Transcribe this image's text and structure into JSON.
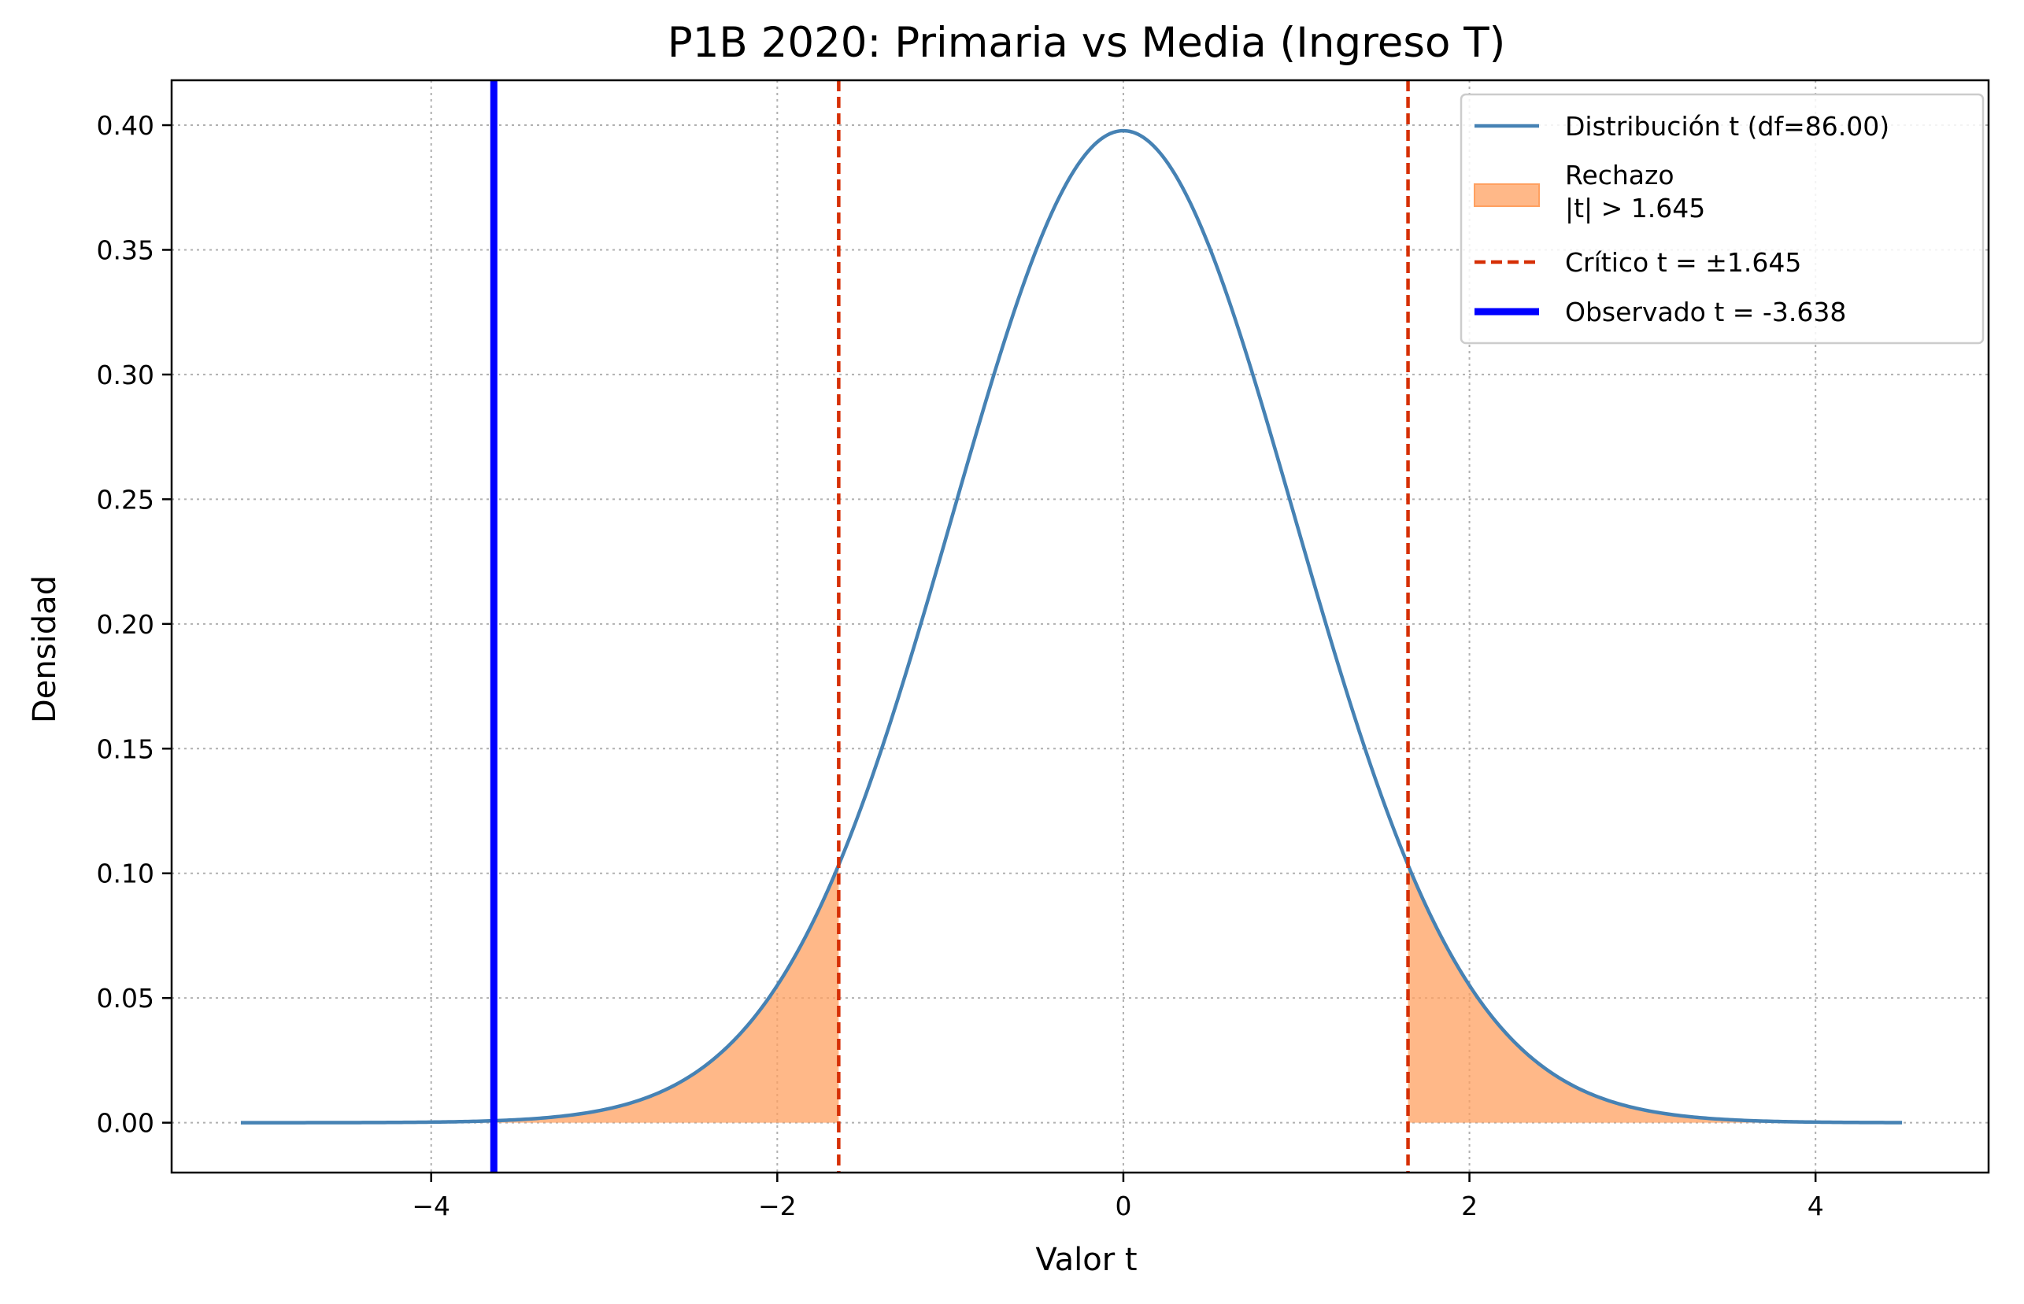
{
  "chart_data": {
    "type": "line",
    "title": "P1B 2020: Primaria vs Media (Ingreso T)",
    "xlabel": "Valor t",
    "ylabel": "Densidad",
    "xlim": [
      -5.5,
      5.0
    ],
    "ylim": [
      -0.02,
      0.418
    ],
    "xticks": [
      -4,
      -2,
      0,
      2,
      4
    ],
    "xtick_labels": [
      "−4",
      "−2",
      "0",
      "2",
      "4"
    ],
    "yticks": [
      0.0,
      0.05,
      0.1,
      0.15,
      0.2,
      0.25,
      0.3,
      0.35,
      0.4
    ],
    "ytick_labels": [
      "0.00",
      "0.05",
      "0.10",
      "0.15",
      "0.20",
      "0.25",
      "0.30",
      "0.35",
      "0.40"
    ],
    "grid": true,
    "legend_position": "top-right",
    "distribution": {
      "df": 86.0,
      "x_range": [
        -5.1,
        4.5
      ],
      "legend_label": "Distribución t (df=86.00)",
      "color": "#4682B4"
    },
    "rejection_region": {
      "critical": 1.645,
      "legend_label": "Rechazo\n|t| > 1.645",
      "color": "#FFA060"
    },
    "critical_lines": {
      "values": [
        -1.645,
        1.645
      ],
      "legend_label": "Crítico t = ±1.645",
      "color": "#D62F05"
    },
    "observed": {
      "value": -3.638,
      "legend_label": "Observado t = -3.638",
      "color": "#0000FF"
    }
  }
}
